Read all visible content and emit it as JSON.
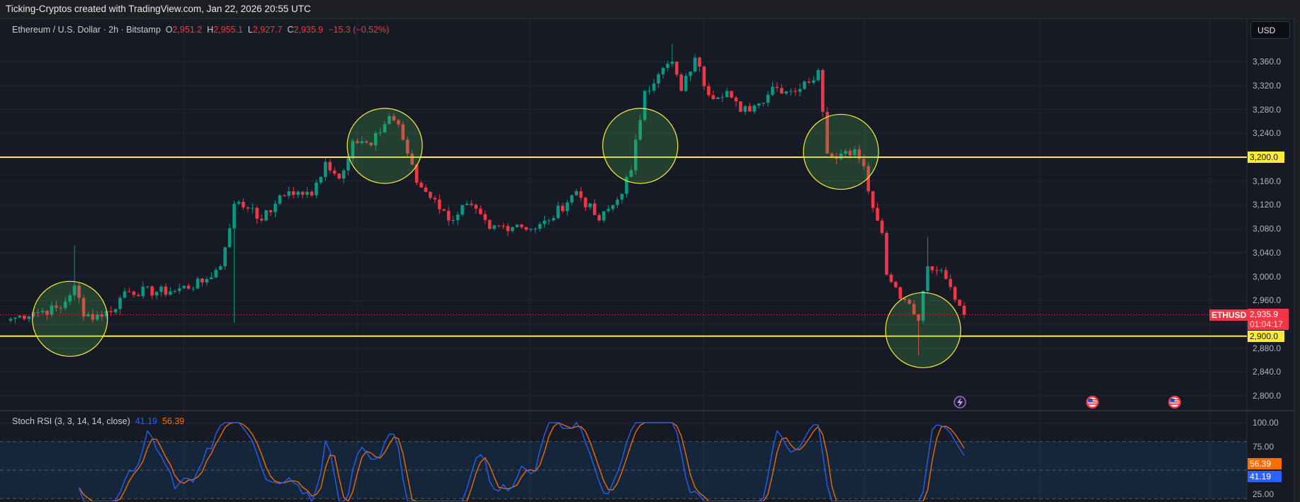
{
  "topbar": {
    "text": "Ticking-Cryptos created with TradingView.com, Jan 22, 2026 20:55 UTC"
  },
  "legend": {
    "symbol": "Ethereum / U.S. Dollar · 2h · Bitstamp",
    "open_label": "O",
    "open": "2,951.2",
    "high_label": "H",
    "high": "2,955.1",
    "low_label": "L",
    "low": "2,927.7",
    "close_label": "C",
    "close": "2,935.9",
    "change": "−15.3 (−0.52%)"
  },
  "currency": "USD",
  "price_axis": {
    "ticks": [
      "3,360.0",
      "3,320.0",
      "3,280.0",
      "3,240.0",
      "3,160.0",
      "3,120.0",
      "3,080.0",
      "3,040.0",
      "3,000.0",
      "2,960.0",
      "2,880.0",
      "2,840.0",
      "2,800.0"
    ]
  },
  "current_price": {
    "symbol": "ETHUSD",
    "price": "2,935.9",
    "countdown": "01:04:17",
    "value": 2935.9,
    "color": "#f23645"
  },
  "levels": [
    {
      "label": "3,200.0",
      "value": 3200,
      "color": "#ffeb3b"
    },
    {
      "label": "2,900.0",
      "value": 2900,
      "color": "#ffeb3b"
    }
  ],
  "rsi": {
    "title": "Stoch RSI (3, 3, 14, 14, close)",
    "k": "41.19",
    "d": "56.39",
    "k_color": "#2962ff",
    "d_color": "#ff6d00",
    "ticks": [
      "100.00",
      "75.00",
      "25.00"
    ],
    "band": [
      20,
      80
    ]
  },
  "events": [
    {
      "icon": "lightning-icon"
    },
    {
      "icon": "us-flag-icon"
    },
    {
      "icon": "us-flag-icon"
    }
  ],
  "chart_data": {
    "type": "candlestick",
    "interval": "2h",
    "bar_count": 210,
    "ylim": [
      2780,
      3400
    ],
    "up_color": "#089981",
    "down_color": "#f23645",
    "close_keypoints": [
      [
        0,
        2929
      ],
      [
        5,
        2940
      ],
      [
        11,
        2947
      ],
      [
        14,
        2985
      ],
      [
        16,
        2933
      ],
      [
        22,
        2940
      ],
      [
        25,
        2975
      ],
      [
        35,
        2975
      ],
      [
        42,
        2990
      ],
      [
        46,
        3017
      ],
      [
        49,
        3122
      ],
      [
        53,
        3115
      ],
      [
        55,
        3094
      ],
      [
        58,
        3122
      ],
      [
        61,
        3143
      ],
      [
        66,
        3136
      ],
      [
        69,
        3192
      ],
      [
        72,
        3164
      ],
      [
        75,
        3227
      ],
      [
        79,
        3220
      ],
      [
        83,
        3269
      ],
      [
        85,
        3255
      ],
      [
        87,
        3206
      ],
      [
        89,
        3157
      ],
      [
        93,
        3129
      ],
      [
        96,
        3094
      ],
      [
        100,
        3122
      ],
      [
        105,
        3080
      ],
      [
        111,
        3087
      ],
      [
        115,
        3080
      ],
      [
        118,
        3094
      ],
      [
        124,
        3143
      ],
      [
        129,
        3094
      ],
      [
        133,
        3129
      ],
      [
        136,
        3178
      ],
      [
        139,
        3311
      ],
      [
        142,
        3339
      ],
      [
        145,
        3360
      ],
      [
        147,
        3311
      ],
      [
        150,
        3367
      ],
      [
        153,
        3304
      ],
      [
        157,
        3311
      ],
      [
        160,
        3276
      ],
      [
        164,
        3290
      ],
      [
        167,
        3318
      ],
      [
        171,
        3311
      ],
      [
        175,
        3325
      ],
      [
        177,
        3346
      ],
      [
        178,
        3276
      ],
      [
        179,
        3206
      ],
      [
        182,
        3206
      ],
      [
        185,
        3213
      ],
      [
        187,
        3185
      ],
      [
        189,
        3115
      ],
      [
        191,
        3073
      ],
      [
        192,
        3003
      ],
      [
        194,
        2982
      ],
      [
        196,
        2961
      ],
      [
        199,
        2926
      ],
      [
        201,
        3017
      ],
      [
        203,
        3010
      ],
      [
        205,
        2996
      ],
      [
        207,
        2961
      ],
      [
        209,
        2935.9
      ]
    ],
    "wick_extremes": [
      [
        14,
        "high",
        3052
      ],
      [
        49,
        "low",
        2922
      ],
      [
        145,
        "high",
        3390
      ],
      [
        199,
        "low",
        2868
      ],
      [
        201,
        "high",
        3066
      ]
    ],
    "circled_zones": [
      [
        13,
        2929
      ],
      [
        82,
        3219
      ],
      [
        138,
        3219
      ],
      [
        182,
        3209
      ],
      [
        200,
        2910
      ]
    ]
  }
}
